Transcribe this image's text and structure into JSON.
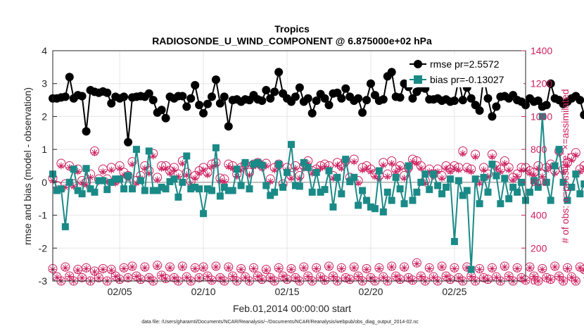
{
  "title": "Tropics",
  "subtitle": "RADIOSONDE_U_WIND_COMPONENT @ 6.875000e+02 hPa",
  "footnote": "data file: /Users/gharamti/Documents/NCAR/Reanalysis/~/Documents/NCAR/Reanalysis/webpub/obs_diag_output_2014-02.nc",
  "colors": {
    "rmse": "#000000",
    "bias": "#1a8a87",
    "obs": "#cc1f5f",
    "zero_line": "#bdbdbd",
    "grid": "#e6e6e6"
  },
  "chart_data": {
    "type": "line",
    "xlabel": "Feb.01,2014 00:00:00 start",
    "ylabel_left": "rmse and bias (model - observation)",
    "ylabel_right": "# of obs: o=possible; ×=assimilated",
    "xlim": [
      1.0,
      29.25
    ],
    "ylim_left": [
      -3,
      4
    ],
    "ylim_right": [
      0,
      1400
    ],
    "x_ticks": [
      5,
      10,
      15,
      20,
      25
    ],
    "x_tick_labels": [
      "02/05",
      "02/10",
      "02/15",
      "02/20",
      "02/25"
    ],
    "y_left_ticks": [
      -3,
      -2,
      -1,
      0,
      1,
      2,
      3,
      4
    ],
    "y_left_tick_labels": [
      "-3",
      "-2",
      "-1",
      "0",
      "1",
      "2",
      "3",
      "4"
    ],
    "y_right_ticks": [
      0,
      200,
      400,
      600,
      800,
      1000,
      1200,
      1400
    ],
    "y_right_tick_labels": [
      "0",
      "200",
      "400",
      "600",
      "800",
      "1000",
      "1200",
      "1400"
    ],
    "legend": {
      "location": "top-right",
      "entries": [
        "rmse pr=2.5572",
        "bias pr=-0.13027"
      ]
    },
    "x_start": 1.0,
    "x_step": 0.25,
    "series": [
      {
        "name": "rmse pr=2.5572",
        "axis": "left",
        "values": [
          2.55,
          2.55,
          2.58,
          2.6,
          3.2,
          2.55,
          2.65,
          2.62,
          1.55,
          2.8,
          2.75,
          2.72,
          2.76,
          2.72,
          2.4,
          2.6,
          2.55,
          2.6,
          1.22,
          2.58,
          2.6,
          2.62,
          2.6,
          2.7,
          2.5,
          2.12,
          2.2,
          1.95,
          2.6,
          2.55,
          2.62,
          2.62,
          2.3,
          2.55,
          2.95,
          2.35,
          2.1,
          2.38,
          2.6,
          3.12,
          2.4,
          2.6,
          1.7,
          2.5,
          2.52,
          2.45,
          2.52,
          2.5,
          2.65,
          2.52,
          2.48,
          2.8,
          2.55,
          2.75,
          3.35,
          2.7,
          2.55,
          2.45,
          2.6,
          2.88,
          2.45,
          2.55,
          2.1,
          2.48,
          2.68,
          2.55,
          2.35,
          2.7,
          2.72,
          2.55,
          2.85,
          2.6,
          2.48,
          2.55,
          2.12,
          2.5,
          3.0,
          2.65,
          2.48,
          2.52,
          3.22,
          3.35,
          2.6,
          2.58,
          3.0,
          2.9,
          2.55,
          2.75,
          2.88,
          2.85,
          2.52,
          2.52,
          2.55,
          2.48,
          2.52,
          2.45,
          2.48,
          3.12,
          2.5,
          2.88,
          2.55,
          2.35,
          2.18,
          3.2,
          2.55,
          2.0,
          2.3,
          2.6,
          2.62,
          2.55,
          2.65,
          2.5,
          2.45,
          2.35,
          2.55,
          2.45,
          2.48,
          2.3,
          2.35,
          3.0,
          2.55,
          2.5,
          2.38,
          2.45,
          2.55,
          2.62,
          2.5,
          2.05,
          2.38,
          3.0
        ]
      },
      {
        "name": "bias pr=-0.13027",
        "axis": "left",
        "values": [
          0.25,
          -0.25,
          -0.2,
          -1.35,
          0.0,
          0.4,
          -0.25,
          -0.35,
          0.42,
          -0.2,
          -0.3,
          0.05,
          0.05,
          -0.22,
          0.0,
          0.1,
          0.1,
          -0.2,
          0.2,
          -0.2,
          1.0,
          0.05,
          -0.25,
          0.95,
          -0.25,
          -0.25,
          -0.15,
          -0.2,
          0.02,
          0.1,
          -0.45,
          0.0,
          0.8,
          -0.2,
          -0.15,
          -0.2,
          -0.95,
          -0.2,
          -0.25,
          1.05,
          -0.42,
          -0.15,
          -0.25,
          -0.25,
          0.4,
          -0.1,
          0.6,
          -0.2,
          0.55,
          0.6,
          0.52,
          -0.1,
          -0.4,
          -0.3,
          0.55,
          -0.15,
          0.3,
          1.15,
          -0.1,
          -0.12,
          0.6,
          0.45,
          -0.3,
          0.3,
          -0.3,
          -0.22,
          0.35,
          -0.75,
          0.15,
          -0.35,
          0.7,
          0.02,
          0.15,
          -0.7,
          -0.25,
          -0.55,
          -0.75,
          -0.8,
          0.35,
          -0.9,
          -0.3,
          -0.55,
          0.15,
          -0.2,
          -0.65,
          0.5,
          -0.55,
          -0.3,
          0.0,
          0.25,
          -0.22,
          0.25,
          -0.1,
          -0.35,
          -0.15,
          0.1,
          -1.8,
          0.05,
          -0.4,
          -0.25,
          -2.65,
          0.1,
          -0.65,
          0.15,
          -0.3,
          0.55,
          0.2,
          -0.65,
          0.12,
          -0.5,
          -0.15,
          -0.3,
          0.0,
          -0.55,
          -0.3,
          0.05,
          -0.15,
          2.0,
          0.0,
          -0.55,
          0.5,
          1.0,
          0.0,
          -0.55,
          -0.15,
          0.25,
          -0.35,
          -0.05,
          -0.6,
          -0.75
        ]
      },
      {
        "name": "obs possible high",
        "axis": "right",
        "values": [
          625,
          580,
          715,
          590,
          700,
          590,
          680,
          610,
          600,
          650,
          790,
          620,
          680,
          620,
          690,
          610,
          700,
          660,
          640,
          725,
          610,
          640,
          700,
          670,
          775,
          630,
          700,
          700,
          670,
          690,
          650,
          730,
          660,
          605,
          640,
          670,
          690,
          660,
          710,
          720,
          625,
          620,
          710,
          700,
          650,
          690,
          710,
          660,
          710,
          720,
          700,
          715,
          620,
          690,
          710,
          590,
          690,
          640,
          700,
          640,
          700,
          730,
          670,
          680,
          700,
          710,
          700,
          640,
          720,
          700,
          730,
          630,
          740,
          610,
          690,
          700,
          680,
          650,
          640,
          720,
          650,
          730,
          680,
          700,
          640,
          690,
          740,
          730,
          700,
          610,
          680,
          650,
          680,
          640,
          700,
          680,
          700,
          690,
          790,
          690,
          680,
          770,
          610,
          690,
          650,
          770,
          700,
          680,
          730,
          690,
          630,
          650,
          690,
          690,
          670,
          660,
          700,
          650,
          690,
          710,
          670,
          790,
          680,
          720,
          750,
          780,
          680,
          700,
          680,
          730
        ]
      },
      {
        "name": "obs assimilated high",
        "axis": "right",
        "values": [
          610,
          560,
          700,
          570,
          690,
          575,
          665,
          595,
          585,
          630,
          780,
          605,
          665,
          605,
          675,
          595,
          685,
          645,
          625,
          710,
          595,
          625,
          685,
          655,
          760,
          615,
          685,
          685,
          655,
          675,
          635,
          715,
          645,
          590,
          625,
          655,
          675,
          645,
          695,
          705,
          610,
          605,
          695,
          685,
          635,
          675,
          695,
          645,
          695,
          705,
          685,
          700,
          605,
          675,
          695,
          575,
          675,
          625,
          685,
          625,
          685,
          715,
          655,
          665,
          685,
          695,
          685,
          625,
          705,
          685,
          715,
          615,
          725,
          595,
          675,
          685,
          665,
          635,
          625,
          705,
          635,
          715,
          665,
          685,
          625,
          675,
          725,
          715,
          685,
          595,
          665,
          635,
          665,
          625,
          685,
          665,
          685,
          675,
          775,
          675,
          665,
          755,
          595,
          675,
          635,
          755,
          685,
          665,
          715,
          675,
          615,
          635,
          675,
          675,
          655,
          645,
          685,
          635,
          675,
          695,
          655,
          775,
          665,
          705,
          735,
          765,
          665,
          685,
          665,
          715
        ]
      },
      {
        "name": "obs possible low",
        "axis": "right",
        "values": [
          75,
          25,
          0,
          85,
          30,
          0,
          70,
          20,
          80,
          0,
          60,
          20,
          75,
          0,
          70,
          30,
          10,
          80,
          20,
          90,
          30,
          10,
          85,
          20,
          0,
          95,
          35,
          15,
          85,
          20,
          0,
          90,
          25,
          0,
          80,
          20,
          85,
          30,
          5,
          90,
          20,
          0,
          85,
          30,
          0,
          75,
          25,
          0,
          80,
          30,
          10,
          70,
          20,
          0,
          80,
          30,
          10,
          75,
          20,
          0,
          85,
          30,
          0,
          80,
          25,
          5,
          90,
          30,
          0,
          80,
          20,
          10,
          85,
          30,
          0,
          75,
          20,
          0,
          80,
          25,
          0,
          90,
          30,
          10,
          85,
          20,
          5,
          110,
          30,
          0,
          80,
          25,
          0,
          90,
          30,
          10,
          80,
          20,
          0,
          85,
          30,
          0,
          75,
          20,
          10,
          80,
          25,
          0,
          90,
          30,
          0,
          80,
          20,
          5,
          85,
          30,
          0,
          75,
          20,
          10,
          90,
          30,
          0,
          80,
          25,
          0,
          85,
          70,
          20,
          0
        ]
      },
      {
        "name": "obs assimilated low",
        "axis": "right",
        "values": [
          70,
          22,
          0,
          80,
          28,
          0,
          65,
          18,
          75,
          0,
          55,
          18,
          70,
          0,
          65,
          28,
          8,
          75,
          18,
          85,
          28,
          8,
          80,
          18,
          0,
          90,
          32,
          13,
          80,
          18,
          0,
          85,
          22,
          0,
          75,
          18,
          80,
          28,
          3,
          85,
          18,
          0,
          80,
          28,
          0,
          70,
          22,
          0,
          75,
          28,
          8,
          65,
          18,
          0,
          75,
          28,
          8,
          70,
          18,
          0,
          80,
          28,
          0,
          75,
          22,
          3,
          85,
          28,
          0,
          75,
          18,
          8,
          80,
          28,
          0,
          70,
          18,
          0,
          75,
          22,
          0,
          85,
          28,
          8,
          80,
          18,
          3,
          105,
          28,
          0,
          75,
          22,
          0,
          85,
          28,
          8,
          75,
          18,
          0,
          80,
          28,
          0,
          70,
          18,
          8,
          75,
          22,
          0,
          85,
          28,
          0,
          75,
          18,
          3,
          80,
          28,
          0,
          70,
          18,
          8,
          85,
          28,
          0,
          75,
          22,
          0,
          80,
          65,
          18,
          0
        ]
      }
    ]
  }
}
